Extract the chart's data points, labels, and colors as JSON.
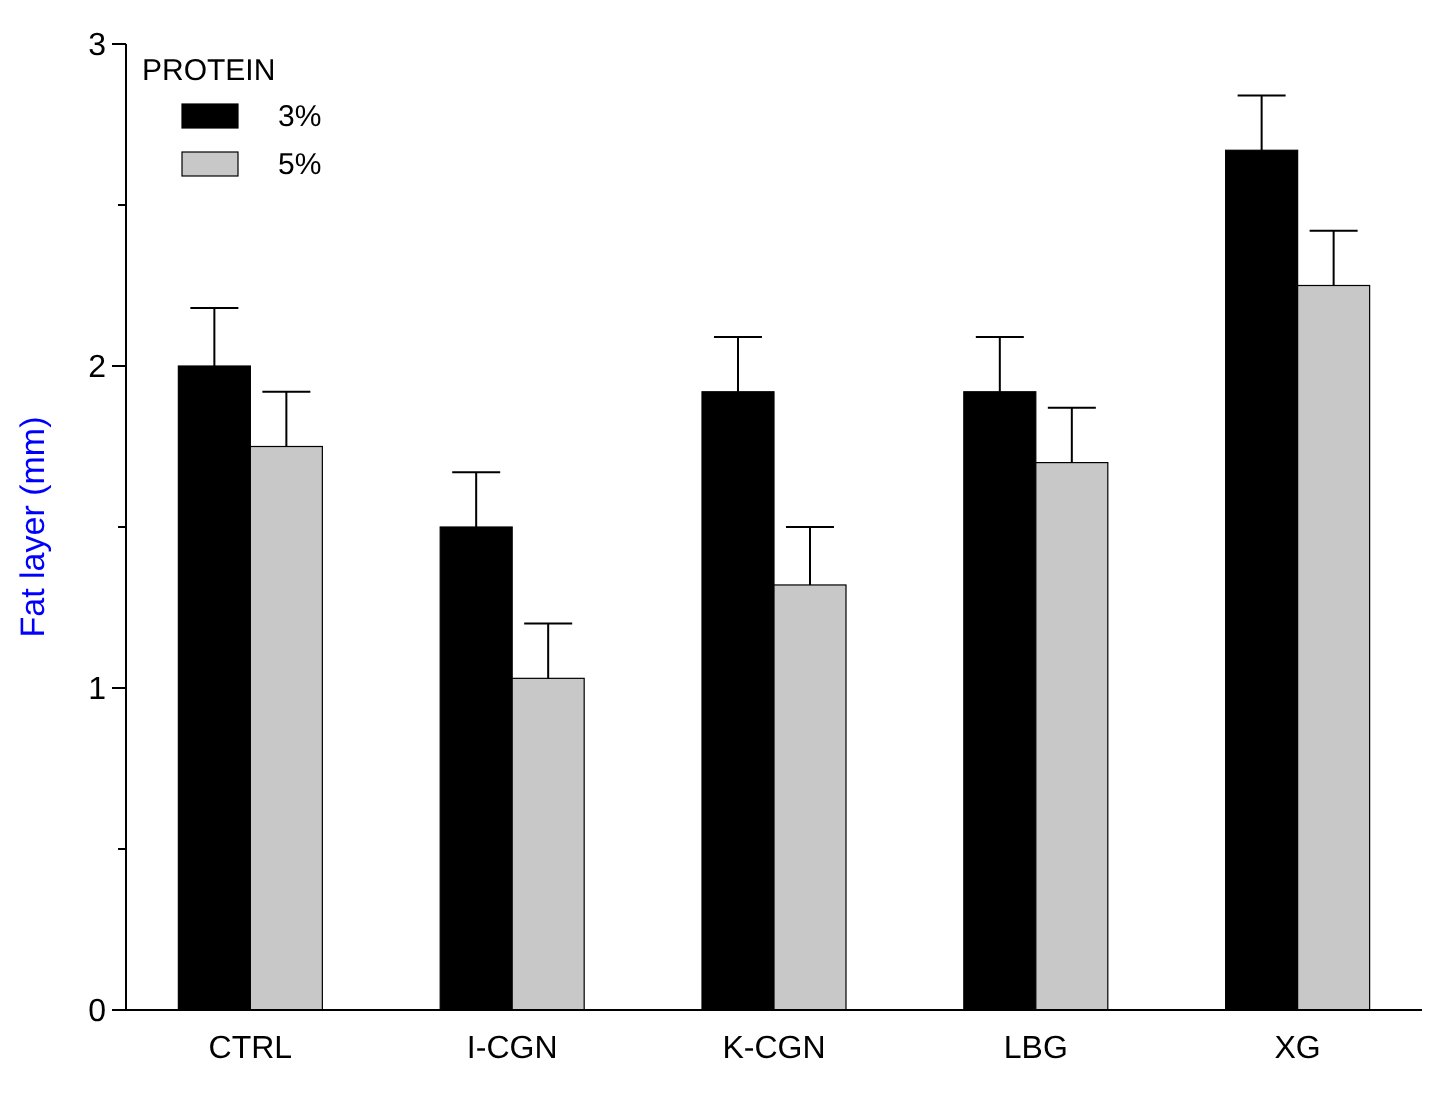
{
  "chart_data": {
    "type": "bar",
    "ylabel": "Fat layer (mm)",
    "legend_title": "PROTEIN",
    "categories": [
      "CTRL",
      "I-CGN",
      "K-CGN",
      "LBG",
      "XG"
    ],
    "series": [
      {
        "name": "3%",
        "color": "#000000",
        "values": [
          2.0,
          1.5,
          1.92,
          1.92,
          2.67
        ],
        "errors": [
          [
            2.0,
            2.18
          ],
          [
            1.5,
            1.67
          ],
          [
            1.92,
            2.09
          ],
          [
            1.92,
            2.09
          ],
          [
            2.67,
            2.84
          ]
        ]
      },
      {
        "name": "5%",
        "color": "#c8c8c8",
        "values": [
          1.75,
          1.03,
          1.32,
          1.7,
          2.25
        ],
        "errors": [
          [
            1.75,
            1.92
          ],
          [
            1.03,
            1.2
          ],
          [
            1.32,
            1.5
          ],
          [
            1.7,
            1.87
          ],
          [
            2.25,
            2.42
          ]
        ]
      }
    ],
    "ylim": [
      0,
      3
    ],
    "yticks": [
      0,
      {
        "value": 0.5,
        "label": null
      },
      1,
      {
        "value": 1.5,
        "label": null
      },
      2,
      {
        "value": 2.5,
        "label": null
      },
      3
    ],
    "legend": "top left",
    "grid": false
  }
}
